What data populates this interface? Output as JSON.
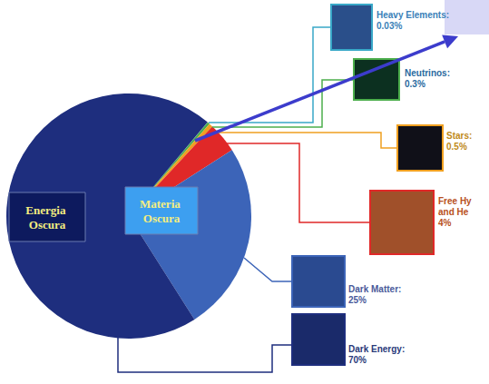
{
  "chart_data": {
    "type": "pie",
    "categories": [
      "Heavy Elements:",
      "Neutrinos:",
      "Stars:",
      "Free Hy and He",
      "Dark Matter:",
      "Dark Energy:"
    ],
    "values": [
      0.03,
      0.3,
      0.5,
      4,
      25,
      70
    ],
    "value_labels": [
      "0.03%",
      "0.3%",
      "0.5%",
      "4%",
      "25%",
      "70%"
    ],
    "colors": [
      "#39a8c8",
      "#4cae4c",
      "#f0a020",
      "#e02828",
      "#3c64b8",
      "#1e2e7e"
    ],
    "annotations": [
      "Energia Oscura",
      "Materia Oscura"
    ],
    "data_labels": true
  }
}
